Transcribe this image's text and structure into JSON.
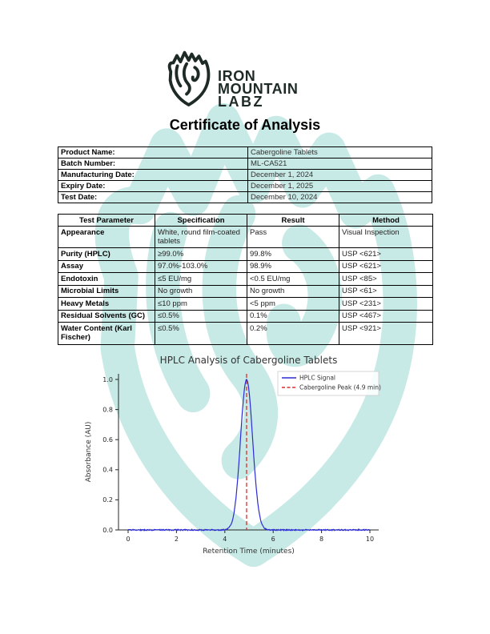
{
  "header": {
    "logo": {
      "line1": "IRON",
      "line2": "MOUNTAIN",
      "line3": "LABZ",
      "icon": "mountain-fist-logo"
    },
    "title": "Certificate of Analysis"
  },
  "info_table": {
    "rows": [
      {
        "label": "Product Name:",
        "value": "Cabergoline Tablets"
      },
      {
        "label": "Batch Number:",
        "value": "ML-CA521"
      },
      {
        "label": "Manufacturing Date:",
        "value": "December 1, 2024"
      },
      {
        "label": "Expiry Date:",
        "value": "December 1, 2025"
      },
      {
        "label": "Test Date:",
        "value": "December 10, 2024"
      }
    ]
  },
  "results_table": {
    "headers": [
      "Test Parameter",
      "Specification",
      "Result",
      "Method"
    ],
    "rows": [
      {
        "parameter": "Appearance",
        "specification": "White, round film-coated tablets",
        "result": "Pass",
        "method": "Visual Inspection"
      },
      {
        "parameter": "Purity (HPLC)",
        "specification": "≥99.0%",
        "result": "99.8%",
        "method": "USP <621>"
      },
      {
        "parameter": "Assay",
        "specification": "97.0%-103.0%",
        "result": "98.9%",
        "method": "USP <621>"
      },
      {
        "parameter": "Endotoxin",
        "specification": "≤5 EU/mg",
        "result": "<0.5 EU/mg",
        "method": "USP <85>"
      },
      {
        "parameter": "Microbial Limits",
        "specification": "No growth",
        "result": "No growth",
        "method": "USP <61>"
      },
      {
        "parameter": "Heavy Metals",
        "specification": "≤10 ppm",
        "result": "<5 ppm",
        "method": "USP <231>"
      },
      {
        "parameter": "Residual Solvents (GC)",
        "specification": "≤0.5%",
        "result": "0.1%",
        "method": "USP <467>"
      },
      {
        "parameter": "Water Content (Karl Fischer)",
        "specification": "≤0.5%",
        "result": "0.2%",
        "method": "USP <921>"
      }
    ]
  },
  "chart_data": {
    "type": "line",
    "title": "HPLC Analysis of Cabergoline Tablets",
    "xlabel": "Retention Time (minutes)",
    "ylabel": "Absorbance (AU)",
    "xlim": [
      0,
      10
    ],
    "ylim": [
      0,
      1.0
    ],
    "x_ticks": [
      0,
      2,
      4,
      6,
      8,
      10
    ],
    "y_ticks": [
      0.0,
      0.2,
      0.4,
      0.6,
      0.8,
      1.0
    ],
    "grid": false,
    "legend_position": "upper right",
    "series": [
      {
        "name": "HPLC Signal",
        "shape": "gaussian_peak",
        "peak_center": 4.9,
        "peak_height": 1.0,
        "peak_sigma": 0.25,
        "baseline_noise": 0.004,
        "color": "#2b2bd5"
      }
    ],
    "annotations": [
      {
        "name": "Cabergoline Peak (4.9 min)",
        "type": "vline",
        "x": 4.9,
        "color": "#e02b2b",
        "style": "dashed"
      }
    ]
  },
  "colors": {
    "watermark": "#9ad9d3",
    "logo": "#1e2a26",
    "signal_blue": "#2b2bd5",
    "peak_red": "#e02b2b"
  }
}
